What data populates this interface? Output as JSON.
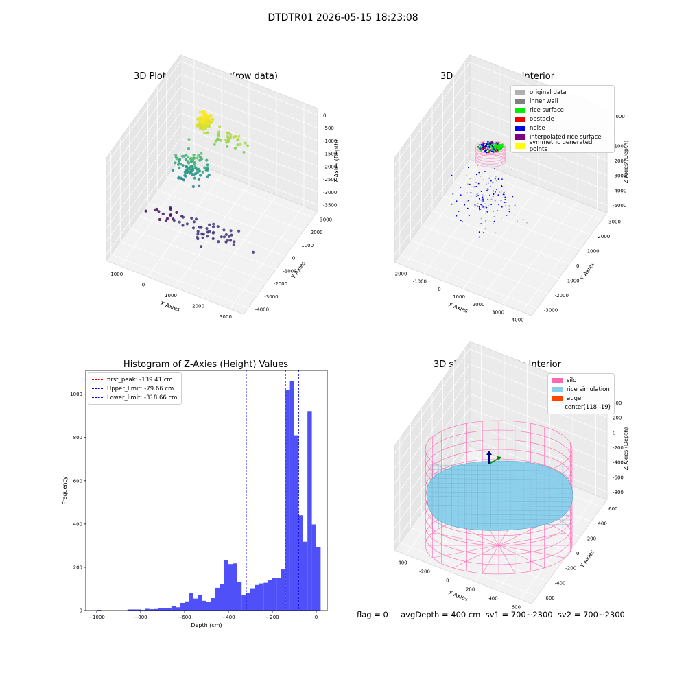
{
  "figure_title": "DTDTR01 2026-05-15 18:23:08",
  "status_line": "flag = 0     avgDepth = 400 cm  sv1 = 700~2300  sv2 = 700~2300",
  "chart_data": [
    {
      "type": "scatter",
      "title": "3D Plot of Silo Interior(row data)",
      "xlabel": "X Axies",
      "ylabel": "Y Axies",
      "zlabel": "Z Axies (Depth)",
      "x_ticks": [
        "-1000",
        "0",
        "1000",
        "2000",
        "3000"
      ],
      "y_ticks": [
        "-4000",
        "-3000",
        "-2000",
        "-1000",
        "0",
        "1000",
        "2000",
        "3000"
      ],
      "z_ticks": [
        "0",
        "-500",
        "-1000",
        "-1500",
        "-2000",
        "-2500",
        "-3000",
        "-3500"
      ],
      "xlim": [
        -1500,
        3800
      ],
      "ylim": [
        -4000,
        3200
      ],
      "zlim": [
        -4000,
        200
      ],
      "colormap": "viridis",
      "clusters": [
        {
          "x": 500,
          "y": 500,
          "z": -100,
          "spread": [
            180,
            260,
            150
          ],
          "count": 170
        },
        {
          "x": 1300,
          "y": 600,
          "z": -600,
          "spread": [
            600,
            300,
            300
          ],
          "count": 35
        },
        {
          "x": 300,
          "y": -200,
          "z": -1700,
          "spread": [
            500,
            500,
            500
          ],
          "count": 90
        },
        {
          "x": 1500,
          "y": -1200,
          "z": -3300,
          "spread": [
            1300,
            600,
            150
          ],
          "count": 45
        },
        {
          "x": -600,
          "y": -500,
          "z": -3700,
          "spread": [
            600,
            400,
            100
          ],
          "count": 15
        }
      ]
    },
    {
      "type": "scatter",
      "title": "3D classify of Silo Interior",
      "xlabel": "X Axies",
      "ylabel": "Y Axies",
      "zlabel": "Z Axies (Depth)",
      "x_ticks": [
        "-2000",
        "-1000",
        "0",
        "1000",
        "2000",
        "3000",
        "4000"
      ],
      "y_ticks": [
        "-3000",
        "-2000",
        "-1000",
        "0",
        "1000",
        "2000",
        "3000"
      ],
      "z_ticks": [
        "1000",
        "0",
        "-1000",
        "-2000",
        "-3000",
        "-4000",
        "-5000"
      ],
      "xlim": [
        -2300,
        4300
      ],
      "ylim": [
        -3300,
        3200
      ],
      "zlim": [
        -5000,
        1200
      ],
      "legend": [
        {
          "label": "original data",
          "color": "#b0b0b0"
        },
        {
          "label": "inner wall",
          "color": "#808080"
        },
        {
          "label": "rice surface",
          "color": "#00ee00"
        },
        {
          "label": "obstacle",
          "color": "#ee0000"
        },
        {
          "label": "noise",
          "color": "#0000ee"
        },
        {
          "label": "interpolated rice surface",
          "color": "#800080"
        },
        {
          "label": "symmetric generated points",
          "color": "#ffff00"
        }
      ]
    },
    {
      "type": "bar",
      "title": "Histogram of Z-Axies (Height) Values",
      "xlabel": "Depth (cm)",
      "ylabel": "Frequency",
      "xlim": [
        -1050,
        50
      ],
      "ylim": [
        0,
        1110
      ],
      "x_ticks": [
        -1000,
        -800,
        -600,
        -400,
        -200,
        0
      ],
      "y_ticks": [
        0,
        200,
        400,
        600,
        800,
        1000
      ],
      "bin_width": 20,
      "bin_start": -1000,
      "values": [
        3,
        0,
        0,
        0,
        0,
        0,
        0,
        5,
        5,
        5,
        3,
        8,
        6,
        7,
        12,
        10,
        12,
        20,
        15,
        35,
        42,
        80,
        55,
        70,
        45,
        38,
        60,
        105,
        122,
        232,
        215,
        218,
        130,
        72,
        80,
        103,
        118,
        125,
        128,
        140,
        150,
        152,
        190,
        1018,
        1060,
        810,
        440,
        318,
        922,
        398,
        292
      ],
      "lines": [
        {
          "label": "first_peak: -139.41 cm",
          "value": -139.41,
          "color": "#ff0000"
        },
        {
          "label": "Upper_limit: -79.66 cm",
          "value": -79.66,
          "color": "#0000ee"
        },
        {
          "label": "Lower_limit: -318.66 cm",
          "value": -318.66,
          "color": "#0000ee"
        }
      ],
      "bar_color": "#5050f8"
    },
    {
      "type": "scatter",
      "title": "3D simulation of Silo Interior",
      "xlabel": "X Axies",
      "ylabel": "Y Axies",
      "zlabel": "Z Axies (Depth)",
      "x_ticks": [
        "-400",
        "-200",
        "0",
        "200",
        "400",
        "600"
      ],
      "y_ticks": [
        "-600",
        "-400",
        "-200",
        "0",
        "200",
        "400",
        "600"
      ],
      "z_ticks": [
        "400",
        "200",
        "0",
        "-200",
        "-400",
        "-600",
        "-800"
      ],
      "xlim": [
        -600,
        800
      ],
      "ylim": [
        -700,
        700
      ],
      "zlim": [
        -900,
        450
      ],
      "legend": [
        {
          "label": "silo",
          "color": "#ff69b4"
        },
        {
          "label": "rice simulation",
          "color": "#87ceeb"
        },
        {
          "label": "auger",
          "color": "#ff4500"
        },
        {
          "label": "center(118,-19)",
          "color": ""
        }
      ]
    }
  ]
}
